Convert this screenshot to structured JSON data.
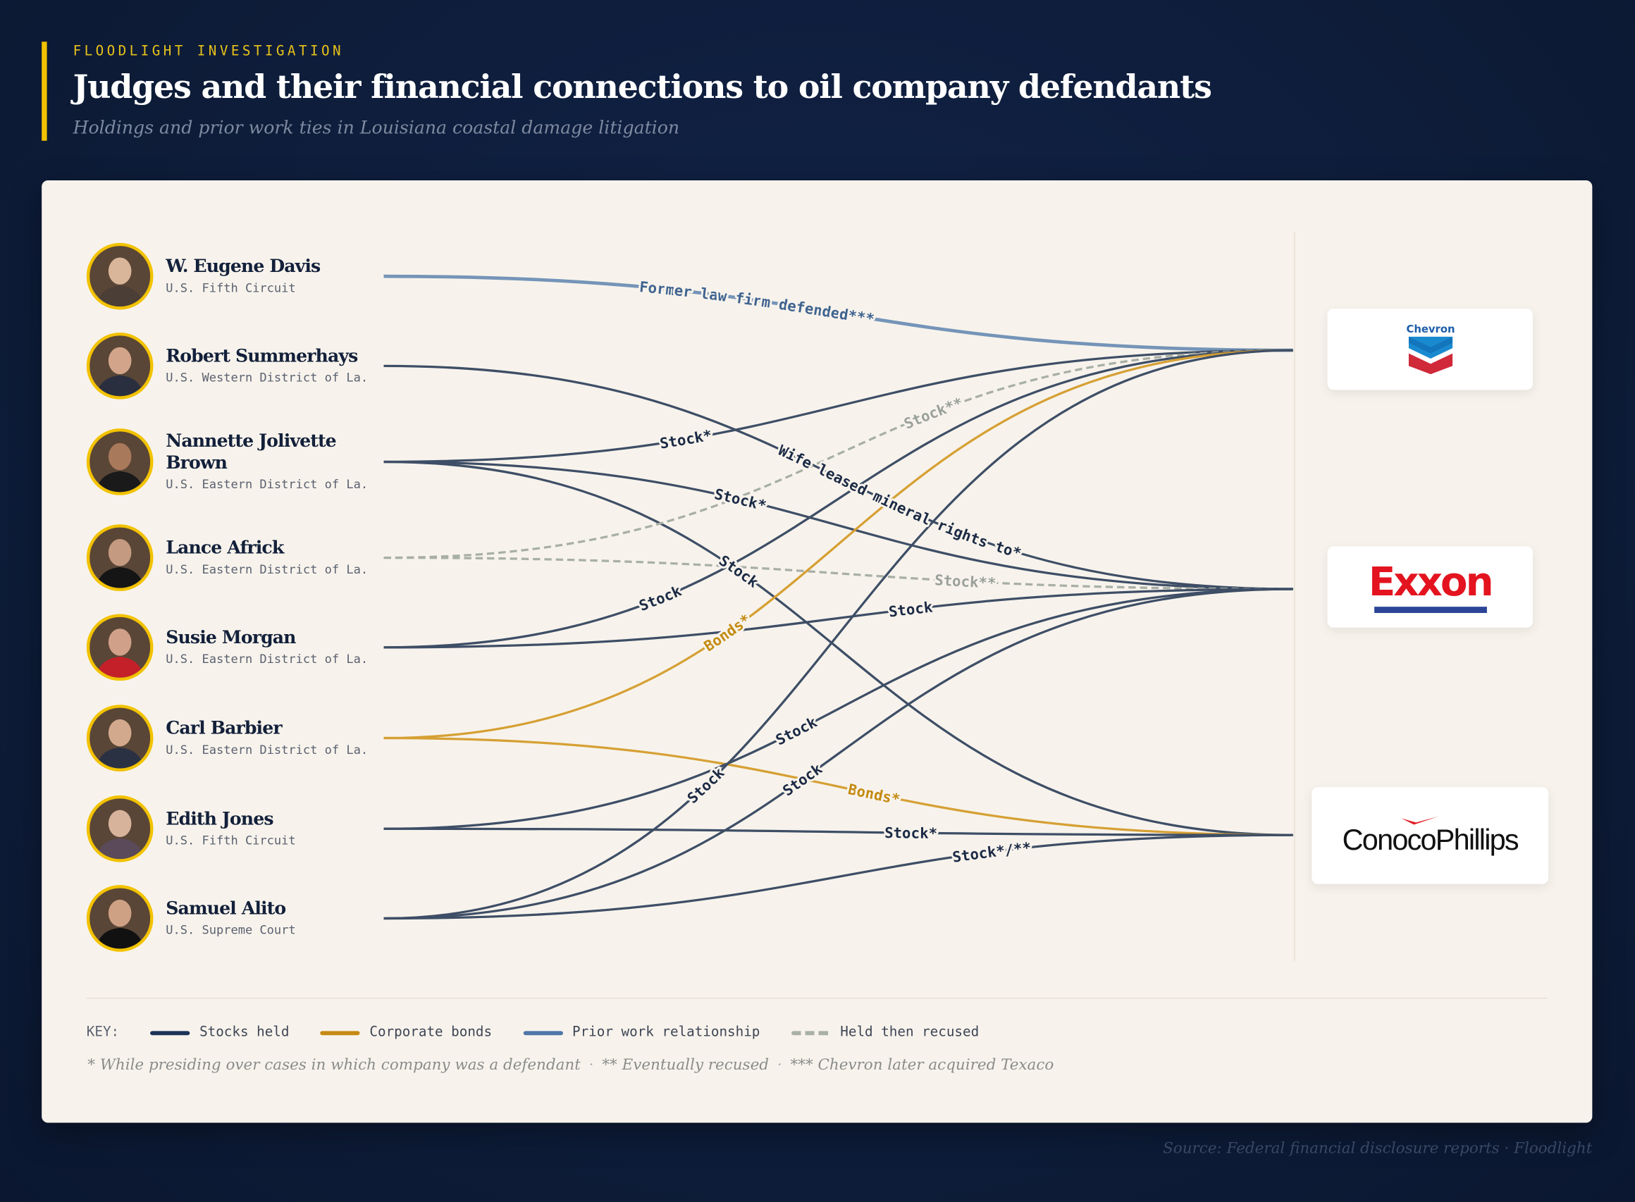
{
  "header": {
    "kicker": "FLOODLIGHT INVESTIGATION",
    "title": "Judges and their financial connections to oil company defendants",
    "subtitle": "Holdings and prior work ties in Louisiana coastal damage litigation"
  },
  "judges": [
    {
      "name": "W. Eugene Davis",
      "court": "U.S. Fifth Circuit"
    },
    {
      "name": "Robert Summerhays",
      "court": "U.S. Western District of La."
    },
    {
      "name": "Nannette Jolivette Brown",
      "court": "U.S. Eastern District of La."
    },
    {
      "name": "Lance Africk",
      "court": "U.S. Eastern District of La."
    },
    {
      "name": "Susie Morgan",
      "court": "U.S. Eastern District of La."
    },
    {
      "name": "Carl Barbier",
      "court": "U.S. Eastern District of La."
    },
    {
      "name": "Edith Jones",
      "court": "U.S. Fifth Circuit"
    },
    {
      "name": "Samuel Alito",
      "court": "U.S. Supreme Court"
    }
  ],
  "companies": [
    {
      "name": "Chevron"
    },
    {
      "name": "Exxon"
    },
    {
      "name": "ConocoPhillips"
    }
  ],
  "links": [
    {
      "judge": 0,
      "company": 0,
      "type": "prior",
      "label": "Former law firm defended***"
    },
    {
      "judge": 1,
      "company": 1,
      "type": "stock",
      "label": "Wife leased mineral rights to*"
    },
    {
      "judge": 2,
      "company": 0,
      "type": "stock",
      "label": "Stock*"
    },
    {
      "judge": 2,
      "company": 1,
      "type": "stock",
      "label": "Stock*"
    },
    {
      "judge": 2,
      "company": 2,
      "type": "stock",
      "label": "Stock"
    },
    {
      "judge": 3,
      "company": 0,
      "type": "recused",
      "label": "Stock**"
    },
    {
      "judge": 3,
      "company": 1,
      "type": "recused",
      "label": "Stock**"
    },
    {
      "judge": 4,
      "company": 0,
      "type": "stock",
      "label": "Stock"
    },
    {
      "judge": 4,
      "company": 1,
      "type": "stock",
      "label": "Stock"
    },
    {
      "judge": 5,
      "company": 0,
      "type": "bonds",
      "label": "Bonds*"
    },
    {
      "judge": 5,
      "company": 2,
      "type": "bonds",
      "label": "Bonds*"
    },
    {
      "judge": 6,
      "company": 1,
      "type": "stock",
      "label": "Stock"
    },
    {
      "judge": 6,
      "company": 2,
      "type": "stock",
      "label": "Stock*"
    },
    {
      "judge": 7,
      "company": 0,
      "type": "stock",
      "label": "Stock"
    },
    {
      "judge": 7,
      "company": 1,
      "type": "stock",
      "label": "Stock"
    },
    {
      "judge": 7,
      "company": 2,
      "type": "stock",
      "label": "Stock*/**"
    }
  ],
  "colors": {
    "stock": "#3e4e66",
    "bonds": "#d6a034",
    "prior": "#7594b8",
    "recused": "#a8afa5",
    "label_stock": "#1b2a45",
    "label_bonds": "#c48a10",
    "label_prior": "#3f6390",
    "label_recused": "#9aa198",
    "accent": "#f2c200"
  },
  "key": {
    "label": "KEY:",
    "items": [
      {
        "label": "Stocks held"
      },
      {
        "label": "Corporate bonds"
      },
      {
        "label": "Prior work relationship"
      },
      {
        "label": "Held then recused"
      }
    ]
  },
  "notes": [
    "* While presiding over cases in which company was a defendant",
    "** Eventually recused",
    "*** Chevron later acquired Texaco"
  ],
  "source": "Source: Federal financial disclosure reports  ·  Floodlight"
}
